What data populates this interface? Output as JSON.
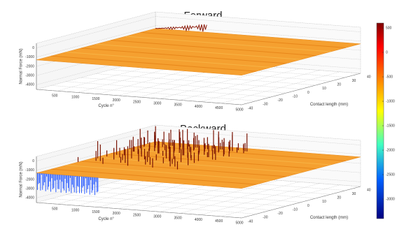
{
  "chart_data": [
    {
      "type": "surface",
      "title": "Forward",
      "xlabel": "Cycle n°",
      "ylabel": "Contact length (mm)",
      "zlabel": "Normal Force (mN)",
      "xlim": [
        0,
        5000
      ],
      "xticks": [
        500,
        1000,
        1500,
        2000,
        2500,
        3000,
        3500,
        4000,
        4500,
        5000
      ],
      "ylim": [
        -40,
        40
      ],
      "yticks": [
        -40,
        -30,
        -20,
        -10,
        0,
        10,
        20,
        30,
        40
      ],
      "zlim": [
        -4500,
        500
      ],
      "zticks": [
        0,
        -1000,
        -2000,
        -3000,
        -4000
      ]
    },
    {
      "type": "surface",
      "title": "Backward",
      "xlabel": "Cycle n°",
      "ylabel": "Contact length (mm)",
      "zlabel": "Normal Force (mN)",
      "xlim": [
        0,
        5000
      ],
      "xticks": [
        500,
        1000,
        1500,
        2000,
        2500,
        3000,
        3500,
        4000,
        4500,
        5000
      ],
      "ylim": [
        -40,
        40
      ],
      "yticks": [
        -40,
        -30,
        -20,
        -10,
        0,
        10,
        20,
        30,
        40
      ],
      "zlim": [
        -4500,
        500
      ],
      "zticks": [
        0,
        -1000,
        -2000,
        -3000,
        -4000
      ]
    }
  ],
  "colorbar": {
    "lim": [
      -3400,
      600
    ],
    "ticks": [
      500,
      0,
      -500,
      -1000,
      -1500,
      -2000,
      -2500,
      -3000
    ],
    "colormap": "jet"
  }
}
